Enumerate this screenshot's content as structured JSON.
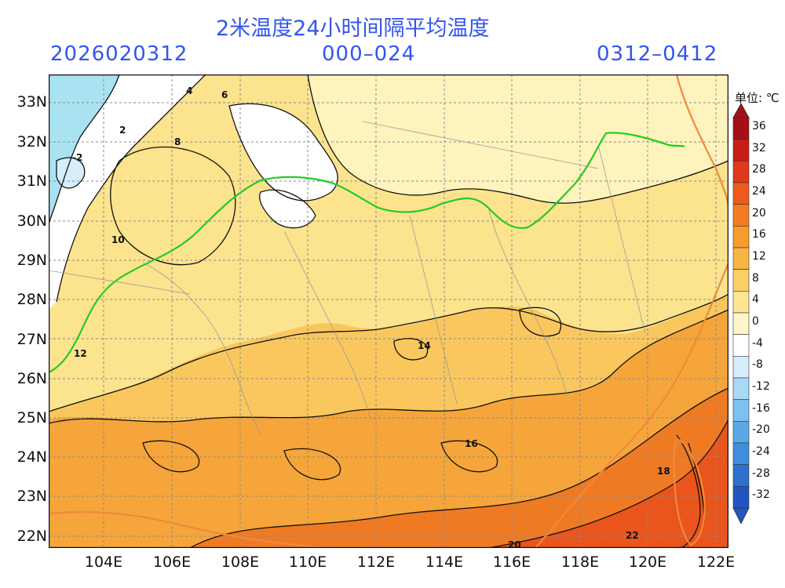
{
  "header": {
    "title": "2米温度24小时间隔平均温度",
    "init_time": "2026020312",
    "forecast_hours": "000–024",
    "valid_period": "0312–0412"
  },
  "axes": {
    "lat_labels": [
      "33N",
      "32N",
      "31N",
      "30N",
      "29N",
      "28N",
      "27N",
      "26N",
      "25N",
      "24N",
      "23N",
      "22N"
    ],
    "lon_labels": [
      "104E",
      "106E",
      "108E",
      "110E",
      "112E",
      "114E",
      "116E",
      "118E",
      "120E",
      "122E"
    ]
  },
  "colorbar": {
    "unit_label": "单位: ℃",
    "levels": [
      "36",
      "32",
      "28",
      "24",
      "20",
      "16",
      "12",
      "8",
      "4",
      "0",
      "-4",
      "-8",
      "-12",
      "-16",
      "-20",
      "-24",
      "-28",
      "-32"
    ],
    "colors": [
      "#a50f15",
      "#c81c16",
      "#e0381a",
      "#ef5a1c",
      "#f47c20",
      "#f79c2a",
      "#f7b543",
      "#fad067",
      "#fce593",
      "#fff6c8",
      "#ffffff",
      "#d6eefc",
      "#a9d9f6",
      "#7dc2ee",
      "#5aa8e6",
      "#3f8ddc",
      "#2f6fd0",
      "#2255c0"
    ]
  },
  "map_colors": {
    "cold_cyan": "#a9e3f2",
    "white": "#ffffff",
    "pale_yellow": "#fff3bd",
    "light_yellow": "#fce38e",
    "yellow_orange": "#f9c75e",
    "orange": "#f5a53a",
    "deep_orange": "#ef7a24",
    "red_orange": "#e9551c",
    "river_green": "#22cc22",
    "coast_orange": "#f08a3a"
  },
  "contour_labels": [
    "-2",
    "2",
    "4",
    "6",
    "8",
    "10",
    "12",
    "14",
    "16",
    "18",
    "20",
    "22"
  ]
}
